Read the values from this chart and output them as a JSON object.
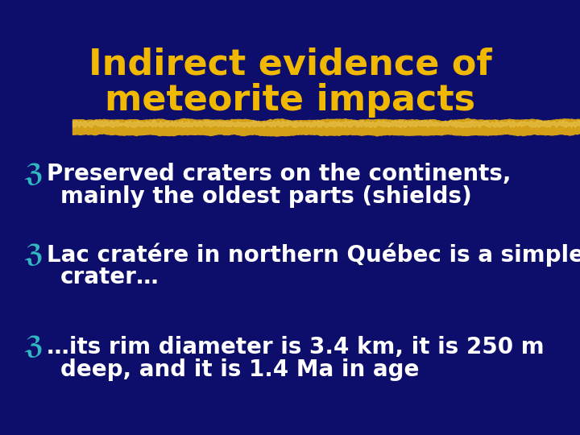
{
  "background_color": "#0d0d6b",
  "title_line1": "Indirect evidence of",
  "title_line2": "meteorite impacts",
  "title_color": "#f0b800",
  "title_fontsize": 32,
  "divider_color": "#d4a017",
  "bullet_symbol": "ℨ",
  "bullet_color": "#30b8c0",
  "bullet_fontsize": 22,
  "body_color": "#ffffff",
  "body_fontsize": 20,
  "bullets": [
    {
      "line1": "Preserved craters on the continents,",
      "line2": "mainly the oldest parts (shields)"
    },
    {
      "line1": "Lac cratére in northern Québec is a simple",
      "line2": "crater…"
    },
    {
      "line1": "…its rim diameter is 3.4 km, it is 250 m",
      "line2": "deep, and it is 1.4 Ma in age"
    }
  ]
}
